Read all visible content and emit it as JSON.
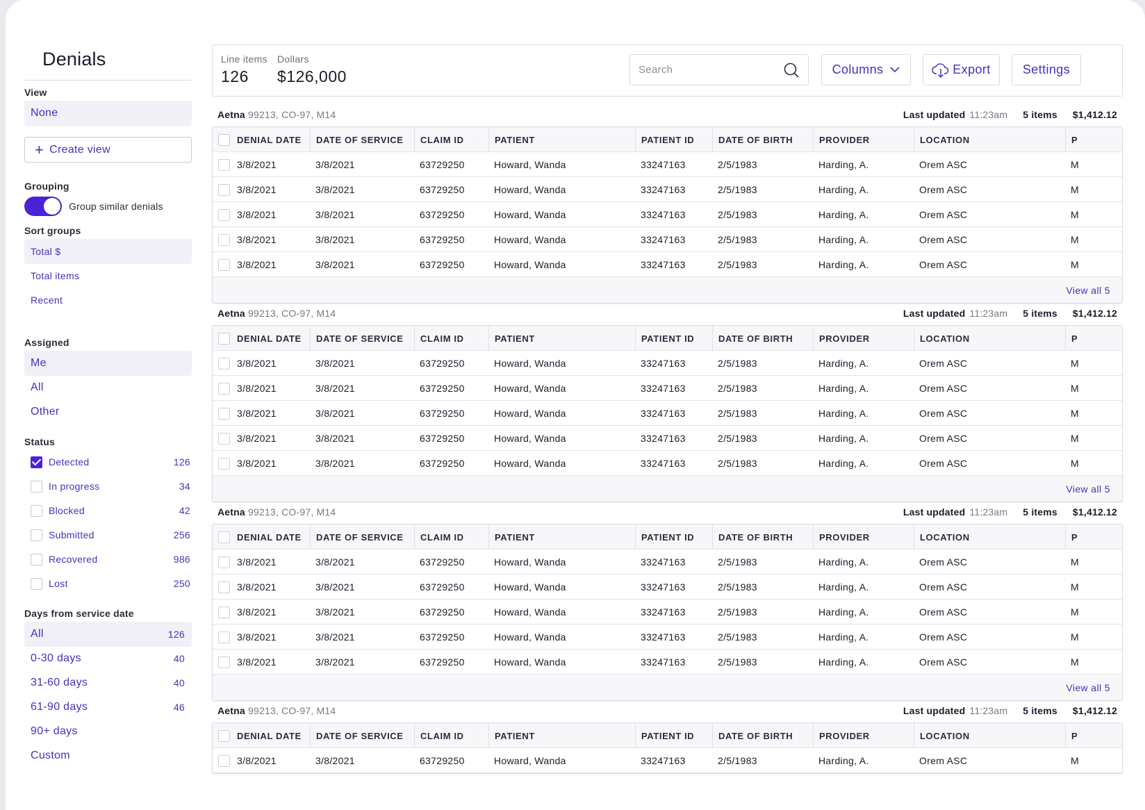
{
  "sidebar": {
    "title": "Denials",
    "view": {
      "label": "View",
      "selected": "None",
      "create_label": "Create view"
    },
    "grouping": {
      "label": "Grouping",
      "toggle_label": "Group similar denials",
      "toggle_on": true
    },
    "sort_groups": {
      "label": "Sort groups",
      "items": [
        "Total $",
        "Total items",
        "Recent"
      ],
      "selected_index": 0
    },
    "assigned": {
      "label": "Assigned",
      "items": [
        "Me",
        "All",
        "Other"
      ],
      "selected_index": 0
    },
    "status": {
      "label": "Status",
      "items": [
        {
          "label": "Detected",
          "count": "126",
          "checked": true
        },
        {
          "label": "In progress",
          "count": "34",
          "checked": false
        },
        {
          "label": "Blocked",
          "count": "42",
          "checked": false
        },
        {
          "label": "Submitted",
          "count": "256",
          "checked": false
        },
        {
          "label": "Recovered",
          "count": "986",
          "checked": false
        },
        {
          "label": "Lost",
          "count": "250",
          "checked": false
        }
      ]
    },
    "days": {
      "label": "Days from service date",
      "items": [
        {
          "label": "All",
          "count": "126"
        },
        {
          "label": "0-30 days",
          "count": "40"
        },
        {
          "label": "31-60 days",
          "count": "40"
        },
        {
          "label": "61-90 days",
          "count": "46"
        },
        {
          "label": "90+ days",
          "count": ""
        },
        {
          "label": "Custom",
          "count": ""
        }
      ],
      "selected_index": 0
    }
  },
  "summary": {
    "line_items_label": "Line items",
    "line_items_value": "126",
    "dollars_label": "Dollars",
    "dollars_value": "$126,000",
    "search_placeholder": "Search",
    "columns_label": "Columns",
    "export_label": "Export",
    "settings_label": "Settings"
  },
  "columns": [
    "DENIAL DATE",
    "DATE OF SERVICE",
    "CLAIM ID",
    "PATIENT",
    "PATIENT ID",
    "DATE OF BIRTH",
    "PROVIDER",
    "LOCATION",
    "P"
  ],
  "groups": [
    {
      "payer": "Aetna",
      "codes": "99213, CO-97, M14",
      "last_updated_label": "Last updated",
      "last_updated_time": "11:23am",
      "items_label": "5 items",
      "amount": "$1,412.12",
      "view_all": "View all 5",
      "rows": [
        [
          "3/8/2021",
          "3/8/2021",
          "63729250",
          "Howard, Wanda",
          "33247163",
          "2/5/1983",
          "Harding, A.",
          "Orem ASC",
          "M"
        ],
        [
          "3/8/2021",
          "3/8/2021",
          "63729250",
          "Howard, Wanda",
          "33247163",
          "2/5/1983",
          "Harding, A.",
          "Orem ASC",
          "M"
        ],
        [
          "3/8/2021",
          "3/8/2021",
          "63729250",
          "Howard, Wanda",
          "33247163",
          "2/5/1983",
          "Harding, A.",
          "Orem ASC",
          "M"
        ],
        [
          "3/8/2021",
          "3/8/2021",
          "63729250",
          "Howard, Wanda",
          "33247163",
          "2/5/1983",
          "Harding, A.",
          "Orem ASC",
          "M"
        ],
        [
          "3/8/2021",
          "3/8/2021",
          "63729250",
          "Howard, Wanda",
          "33247163",
          "2/5/1983",
          "Harding, A.",
          "Orem ASC",
          "M"
        ]
      ]
    },
    {
      "payer": "Aetna",
      "codes": "99213, CO-97, M14",
      "last_updated_label": "Last updated",
      "last_updated_time": "11:23am",
      "items_label": "5 items",
      "amount": "$1,412.12",
      "view_all": "View all 5",
      "rows": [
        [
          "3/8/2021",
          "3/8/2021",
          "63729250",
          "Howard, Wanda",
          "33247163",
          "2/5/1983",
          "Harding, A.",
          "Orem ASC",
          "M"
        ],
        [
          "3/8/2021",
          "3/8/2021",
          "63729250",
          "Howard, Wanda",
          "33247163",
          "2/5/1983",
          "Harding, A.",
          "Orem ASC",
          "M"
        ],
        [
          "3/8/2021",
          "3/8/2021",
          "63729250",
          "Howard, Wanda",
          "33247163",
          "2/5/1983",
          "Harding, A.",
          "Orem ASC",
          "M"
        ],
        [
          "3/8/2021",
          "3/8/2021",
          "63729250",
          "Howard, Wanda",
          "33247163",
          "2/5/1983",
          "Harding, A.",
          "Orem ASC",
          "M"
        ],
        [
          "3/8/2021",
          "3/8/2021",
          "63729250",
          "Howard, Wanda",
          "33247163",
          "2/5/1983",
          "Harding, A.",
          "Orem ASC",
          "M"
        ]
      ]
    },
    {
      "payer": "Aetna",
      "codes": "99213, CO-97, M14",
      "last_updated_label": "Last updated",
      "last_updated_time": "11:23am",
      "items_label": "5 items",
      "amount": "$1,412.12",
      "view_all": "View all 5",
      "rows": [
        [
          "3/8/2021",
          "3/8/2021",
          "63729250",
          "Howard, Wanda",
          "33247163",
          "2/5/1983",
          "Harding, A.",
          "Orem ASC",
          "M"
        ],
        [
          "3/8/2021",
          "3/8/2021",
          "63729250",
          "Howard, Wanda",
          "33247163",
          "2/5/1983",
          "Harding, A.",
          "Orem ASC",
          "M"
        ],
        [
          "3/8/2021",
          "3/8/2021",
          "63729250",
          "Howard, Wanda",
          "33247163",
          "2/5/1983",
          "Harding, A.",
          "Orem ASC",
          "M"
        ],
        [
          "3/8/2021",
          "3/8/2021",
          "63729250",
          "Howard, Wanda",
          "33247163",
          "2/5/1983",
          "Harding, A.",
          "Orem ASC",
          "M"
        ],
        [
          "3/8/2021",
          "3/8/2021",
          "63729250",
          "Howard, Wanda",
          "33247163",
          "2/5/1983",
          "Harding, A.",
          "Orem ASC",
          "M"
        ]
      ]
    },
    {
      "payer": "Aetna",
      "codes": "99213, CO-97, M14",
      "last_updated_label": "Last updated",
      "last_updated_time": "11:23am",
      "items_label": "5 items",
      "amount": "$1,412.12",
      "view_all": "",
      "rows": [
        [
          "3/8/2021",
          "3/8/2021",
          "63729250",
          "Howard, Wanda",
          "33247163",
          "2/5/1983",
          "Harding, A.",
          "Orem ASC",
          "M"
        ]
      ]
    }
  ],
  "colors": {
    "accent": "#4b2fb5",
    "toggle": "#4b22d6",
    "selected_bg": "#f0f0f6"
  },
  "icons": {
    "search": "search-icon",
    "columns": "chevron-down-icon",
    "export": "cloud-download-icon",
    "create_view": "plus-icon"
  }
}
